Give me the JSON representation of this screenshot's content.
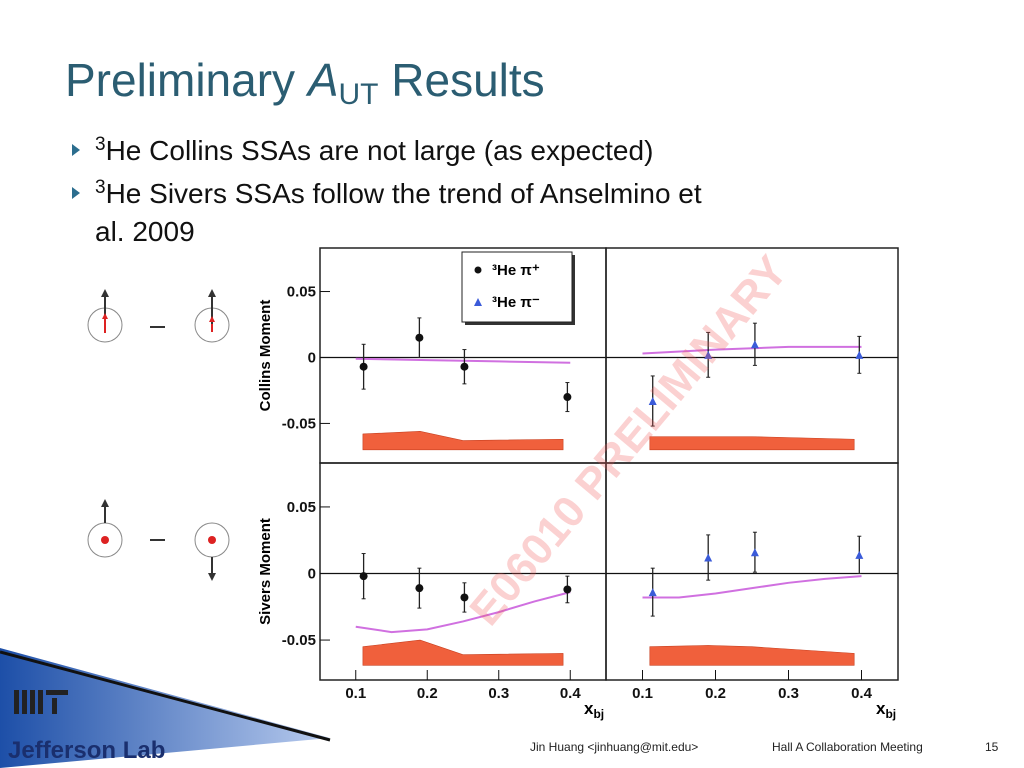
{
  "slide": {
    "title": {
      "pre": "Preliminary",
      "var": "A",
      "sub": "UT",
      "post": "Results"
    },
    "bullets": [
      {
        "sup": "3",
        "lines": [
          "He Collins SSAs are not large (as expected)"
        ]
      },
      {
        "sup": "3",
        "lines": [
          "He Sivers SSAs follow the trend of Anselmino et",
          "al. 2009"
        ]
      }
    ],
    "watermark": "E06010 PRELIMINARY",
    "logo": "Jefferson Lab",
    "footer": {
      "author": "Jin Huang <jinhuang@mit.edu>",
      "meeting": "Hall A Collaboration Meeting",
      "page": "15"
    }
  },
  "chart_data": [
    {
      "type": "scatter",
      "xlim": [
        0.05,
        0.45
      ],
      "ylim": [
        -0.08,
        0.083
      ],
      "yticks": [
        -0.05,
        0,
        0.05
      ],
      "ylabel": "Collins Moment",
      "legend": "upper right",
      "series": [
        {
          "name": "³He π⁺",
          "color": "#111111",
          "marker": "circle",
          "x": [
            0.111,
            0.189,
            0.252,
            0.396
          ],
          "values": [
            -0.007,
            0.015,
            -0.007,
            -0.03
          ],
          "errors": [
            0.017,
            0.015,
            0.013,
            0.011
          ]
        }
      ],
      "curve": {
        "color": "#d070e0",
        "x": [
          0.1,
          0.2,
          0.3,
          0.4
        ],
        "values": [
          -0.001,
          -0.002,
          -0.003,
          -0.004
        ]
      },
      "band": {
        "color": "#f0603c",
        "x": [
          0.11,
          0.19,
          0.25,
          0.39
        ],
        "values": [
          -0.058,
          -0.056,
          -0.063,
          -0.062
        ],
        "base": [
          -0.07,
          -0.07,
          -0.07,
          -0.07
        ]
      }
    },
    {
      "type": "scatter",
      "xlim": [
        0.05,
        0.45
      ],
      "ylim": [
        -0.08,
        0.083
      ],
      "series": [
        {
          "name": "³He π⁻",
          "color": "#3b5bd9",
          "marker": "triangle",
          "x": [
            0.114,
            0.19,
            0.254,
            0.397
          ],
          "values": [
            -0.033,
            0.002,
            0.01,
            0.002
          ],
          "errors": [
            0.019,
            0.017,
            0.016,
            0.014
          ]
        }
      ],
      "curve": {
        "color": "#d070e0",
        "x": [
          0.1,
          0.2,
          0.3,
          0.4
        ],
        "values": [
          0.003,
          0.006,
          0.008,
          0.008
        ]
      },
      "band": {
        "color": "#f0603c",
        "x": [
          0.11,
          0.19,
          0.25,
          0.39
        ],
        "values": [
          -0.06,
          -0.06,
          -0.06,
          -0.062
        ],
        "base": [
          -0.07,
          -0.07,
          -0.07,
          -0.07
        ]
      }
    },
    {
      "type": "scatter",
      "xlim": [
        0.05,
        0.45
      ],
      "ylim": [
        -0.08,
        0.083
      ],
      "yticks": [
        -0.05,
        0,
        0.05
      ],
      "xticks": [
        0.1,
        0.2,
        0.3,
        0.4
      ],
      "ylabel": "Sivers Moment",
      "xlabel": "x",
      "xlabel_sub": "bj",
      "series": [
        {
          "color": "#111111",
          "marker": "circle",
          "x": [
            0.111,
            0.189,
            0.252,
            0.396
          ],
          "values": [
            -0.002,
            -0.011,
            -0.018,
            -0.012
          ],
          "errors": [
            0.017,
            0.015,
            0.011,
            0.01
          ]
        }
      ],
      "curve": {
        "color": "#d070e0",
        "x": [
          0.1,
          0.15,
          0.2,
          0.25,
          0.3,
          0.35,
          0.4
        ],
        "values": [
          -0.04,
          -0.044,
          -0.042,
          -0.036,
          -0.029,
          -0.021,
          -0.014
        ]
      },
      "band": {
        "color": "#f0603c",
        "x": [
          0.11,
          0.19,
          0.25,
          0.39
        ],
        "values": [
          -0.055,
          -0.05,
          -0.061,
          -0.06
        ],
        "base": [
          -0.069,
          -0.069,
          -0.069,
          -0.069
        ]
      }
    },
    {
      "type": "scatter",
      "xlim": [
        0.05,
        0.45
      ],
      "ylim": [
        -0.08,
        0.083
      ],
      "xticks": [
        0.1,
        0.2,
        0.3,
        0.4
      ],
      "xlabel": "x",
      "xlabel_sub": "bj",
      "series": [
        {
          "color": "#3b5bd9",
          "marker": "triangle",
          "x": [
            0.114,
            0.19,
            0.254,
            0.397
          ],
          "values": [
            -0.014,
            0.012,
            0.016,
            0.014
          ],
          "errors": [
            0.018,
            0.017,
            0.015,
            0.014
          ]
        }
      ],
      "curve": {
        "color": "#d070e0",
        "x": [
          0.1,
          0.15,
          0.2,
          0.25,
          0.3,
          0.35,
          0.4
        ],
        "values": [
          -0.018,
          -0.018,
          -0.015,
          -0.011,
          -0.007,
          -0.004,
          -0.002
        ]
      },
      "band": {
        "color": "#f0603c",
        "x": [
          0.11,
          0.19,
          0.25,
          0.39
        ],
        "values": [
          -0.055,
          -0.054,
          -0.055,
          -0.06
        ],
        "base": [
          -0.069,
          -0.069,
          -0.069,
          -0.069
        ]
      }
    }
  ]
}
